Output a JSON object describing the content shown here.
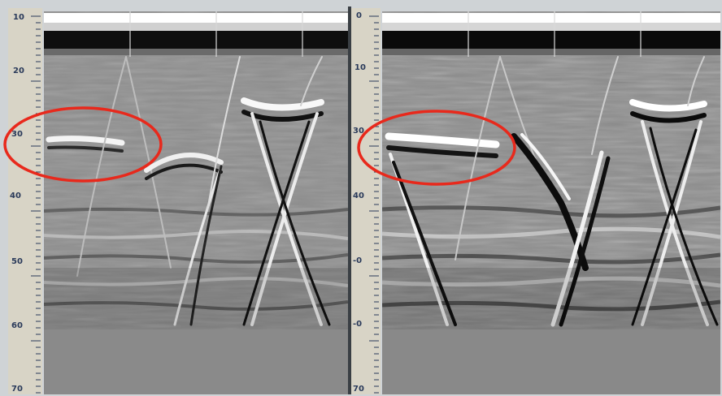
{
  "panels": [
    {
      "id": "left",
      "depth_labels": [
        "10",
        "20",
        "30",
        "40",
        "50",
        "60",
        "70"
      ]
    },
    {
      "id": "right",
      "depth_labels": [
        "0",
        "10",
        "30",
        "40",
        "-0",
        "-0",
        "70"
      ]
    }
  ],
  "annotations": [
    {
      "type": "ellipse",
      "panel": "left",
      "color": "#e8291c"
    },
    {
      "type": "ellipse",
      "panel": "right",
      "color": "#e8291c"
    }
  ],
  "colors": {
    "ruler_bg": "#d8d4c6",
    "frame": "#cfd3d6",
    "radargram_base": "#8c8c8c",
    "below_data": "#8a8a8a",
    "highlight": "#e8291c"
  }
}
